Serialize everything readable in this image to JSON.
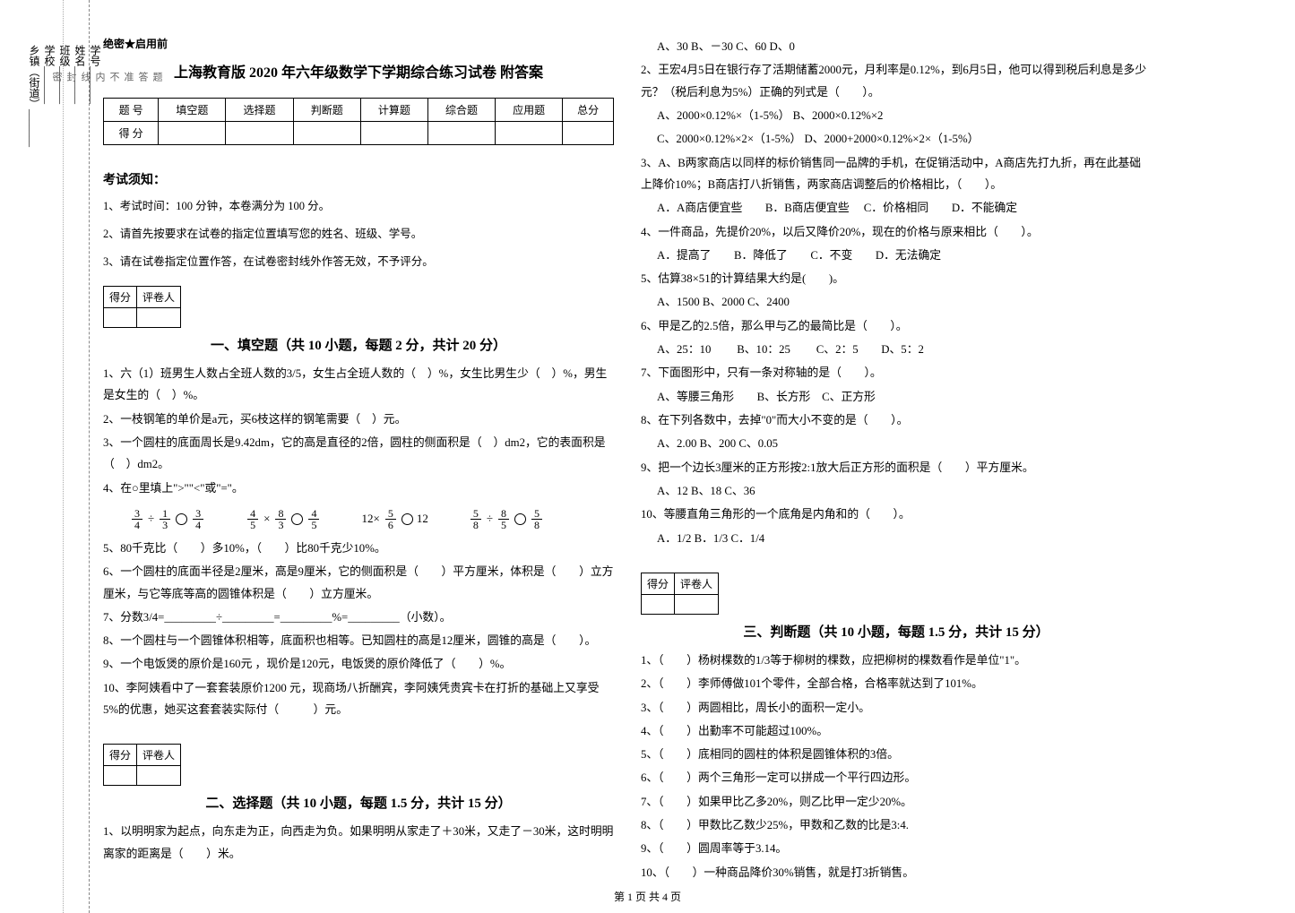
{
  "binding": {
    "fields": [
      "学号_______",
      "姓名_______",
      "班级_______",
      "学校_______",
      "乡镇（街道）_______"
    ],
    "dotted": [
      "题",
      "答",
      "准",
      "不",
      "内",
      "线",
      "封",
      "密"
    ]
  },
  "secret": "绝密★启用前",
  "title": "上海教育版 2020 年六年级数学下学期综合练习试卷 附答案",
  "scoreTable": {
    "headers": [
      "题   号",
      "填空题",
      "选择题",
      "判断题",
      "计算题",
      "综合题",
      "应用题",
      "总分"
    ],
    "row_label": "得   分"
  },
  "examNotice": {
    "heading": "考试须知：",
    "items": [
      "1、考试时间：100 分钟，本卷满分为 100 分。",
      "2、请首先按要求在试卷的指定位置填写您的姓名、班级、学号。",
      "3、请在试卷指定位置作答，在试卷密封线外作答无效，不予评分。"
    ]
  },
  "scoreBox": {
    "c1": "得分",
    "c2": "评卷人"
  },
  "section1": {
    "title": "一、填空题（共 10 小题，每题 2 分，共计 20 分）",
    "q1": "1、六（1）班男生人数占全班人数的3/5，女生占全班人数的（　）%，女生比男生少（　）%，男生是女生的（　）%。",
    "q2": "2、一枝钢笔的单价是a元，买6枝这样的钢笔需要（　）元。",
    "q3": "3、一个圆柱的底面周长是9.42dm，它的高是直径的2倍，圆柱的侧面积是（　）dm2，它的表面积是（　）dm2。",
    "q4": "4、在○里填上\">\"\"<\"或\"=\"。",
    "math": {
      "g1": {
        "a_n": "3",
        "a_d": "4",
        "op": "÷",
        "b_n": "1",
        "b_d": "3",
        "r_n": "3",
        "r_d": "4"
      },
      "g2": {
        "a_n": "4",
        "a_d": "5",
        "op": "×",
        "b_n": "8",
        "b_d": "3",
        "r_n": "4",
        "r_d": "5"
      },
      "g3": {
        "a": "12×",
        "b_n": "5",
        "b_d": "6",
        "r": "12"
      },
      "g4": {
        "a_n": "5",
        "a_d": "8",
        "op": "÷",
        "b_n": "8",
        "b_d": "5",
        "r_n": "5",
        "r_d": "8"
      }
    },
    "q5": "5、80千克比（　　）多10%，（　　）比80千克少10%。",
    "q6": "6、一个圆柱的底面半径是2厘米，高是9厘米，它的侧面积是（　　）平方厘米，体积是（　　）立方厘米，与它等底等高的圆锥体积是（　　）立方厘米。",
    "q7": "7、分数3/4=_________÷_________=_________%=_________（小数）。",
    "q8": "8、一个圆柱与一个圆锥体积相等，底面积也相等。已知圆柱的高是12厘米，圆锥的高是（　　）。",
    "q9": "9、一个电饭煲的原价是160元 ，现价是120元，电饭煲的原价降低了（　　）%。",
    "q10": "10、李阿姨看中了一套套装原价1200 元，现商场八折酬宾，李阿姨凭贵宾卡在打折的基础上又享受5%的优惠，她买这套套装实际付（　　　）元。"
  },
  "section2": {
    "title": "二、选择题（共 10 小题，每题 1.5 分，共计 15 分）",
    "q1": "1、以明明家为起点，向东走为正，向西走为负。如果明明从家走了＋30米，又走了－30米，这时明明离家的距离是（　　）米。",
    "q1_opts": "A、30           B、－30         C、60           D、0",
    "q2": "2、王宏4月5日在银行存了活期储蓄2000元，月利率是0.12%，到6月5日，他可以得到税后利息是多少元？（税后利息为5%）正确的列式是（　　）。",
    "q2_opts_a": "A、2000×0.12%×（1-5%）           B、2000×0.12%×2",
    "q2_opts_b": "C、2000×0.12%×2×（1-5%）         D、2000+2000×0.12%×2×（1-5%）",
    "q3": "3、A、B两家商店以同样的标价销售同一品牌的手机，在促销活动中，A商店先打九折，再在此基础上降价10%；B商店打八折销售，两家商店调整后的价格相比，（　　）。",
    "q3_opts": "A．A商店便宜些　　B．B商店便宜些　 C．价格相同　　D．不能确定",
    "q4": "4、一件商品，先提价20%，以后又降价20%，现在的价格与原来相比（　　）。",
    "q4_opts": "A．提高了　　B．降低了　　C．不变　　D．无法确定",
    "q5": "5、估算38×51的计算结果大约是(　　)。",
    "q5_opts": "A、1500   B、2000   C、2400",
    "q6": "6、甲是乙的2.5倍，那么甲与乙的最简比是（　　）。",
    "q6_opts": "A、25：10　　 B、10：25　　 C、2：5　　D、5：2",
    "q7": "7、下面图形中，只有一条对称轴的是（　　）。",
    "q7_opts": "A、等腰三角形　　B、长方形　C、正方形",
    "q8": "8、在下列各数中，去掉\"0\"而大小不变的是（　　）。",
    "q8_opts": "A、2.00    B、200       C、0.05",
    "q9": "9、把一个边长3厘米的正方形按2:1放大后正方形的面积是（　　）平方厘米。",
    "q9_opts": "A、12        B、18       C、36",
    "q10": "10、等腰直角三角形的一个底角是内角和的（　　）。",
    "q10_opts": "A．1/2            B．1/3          C．1/4"
  },
  "section3": {
    "title": "三、判断题（共 10 小题，每题 1.5 分，共计 15 分）",
    "items": [
      "1、（　　）杨树棵数的1/3等于柳树的棵数，应把柳树的棵数看作是单位\"1\"。",
      "2、（　　）李师傅做101个零件，全部合格，合格率就达到了101%。",
      "3、（　　）两圆相比，周长小的面积一定小。",
      "4、（　　）出勤率不可能超过100%。",
      "5、（　　）底相同的圆柱的体积是圆锥体积的3倍。",
      "6、（　　）两个三角形一定可以拼成一个平行四边形。",
      "7、（　　）如果甲比乙多20%，则乙比甲一定少20%。",
      "8、（　　）甲数比乙数少25%，甲数和乙数的比是3:4.",
      "9、（　　）圆周率等于3.14。",
      "10、（　　）一种商品降价30%销售，就是打3折销售。"
    ]
  },
  "footer": "第 1 页 共 4 页"
}
